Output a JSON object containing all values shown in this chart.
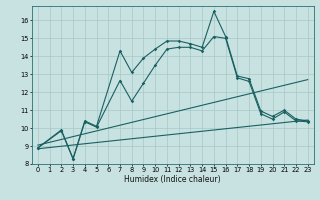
{
  "xlabel": "Humidex (Indice chaleur)",
  "bg_color": "#c8e2e2",
  "grid_color": "#a8c8c8",
  "line_color": "#1a6060",
  "xlim": [
    -0.5,
    23.5
  ],
  "ylim": [
    8,
    16.8
  ],
  "xticks": [
    0,
    1,
    2,
    3,
    4,
    5,
    6,
    7,
    8,
    9,
    10,
    11,
    12,
    13,
    14,
    15,
    16,
    17,
    18,
    19,
    20,
    21,
    22,
    23
  ],
  "yticks": [
    8,
    9,
    10,
    11,
    12,
    13,
    14,
    15,
    16
  ],
  "line1_x": [
    0,
    2,
    3,
    4,
    5,
    7,
    8,
    9,
    10,
    11,
    12,
    13,
    14,
    15,
    16,
    17,
    18,
    19,
    20,
    21,
    22,
    23
  ],
  "line1_y": [
    8.9,
    9.9,
    8.3,
    10.4,
    10.1,
    14.3,
    13.1,
    13.9,
    14.4,
    14.85,
    14.85,
    14.7,
    14.5,
    16.5,
    15.1,
    12.9,
    12.75,
    10.95,
    10.65,
    11.0,
    10.5,
    10.4
  ],
  "line2_x": [
    0,
    2,
    3,
    4,
    5,
    7,
    8,
    9,
    10,
    11,
    12,
    13,
    14,
    15,
    16,
    17,
    18,
    19,
    20,
    21,
    22,
    23
  ],
  "line2_y": [
    8.9,
    9.85,
    8.28,
    10.35,
    10.05,
    12.65,
    11.5,
    12.5,
    13.5,
    14.4,
    14.5,
    14.5,
    14.3,
    15.1,
    15.0,
    12.8,
    12.6,
    10.8,
    10.5,
    10.9,
    10.4,
    10.35
  ],
  "line3_x": [
    0,
    23
  ],
  "line3_y": [
    9.05,
    12.7
  ],
  "line4_x": [
    0,
    23
  ],
  "line4_y": [
    8.85,
    10.45
  ],
  "xlabel_fontsize": 5.5,
  "tick_fontsize": 4.8,
  "lw": 0.8,
  "ms": 1.8
}
